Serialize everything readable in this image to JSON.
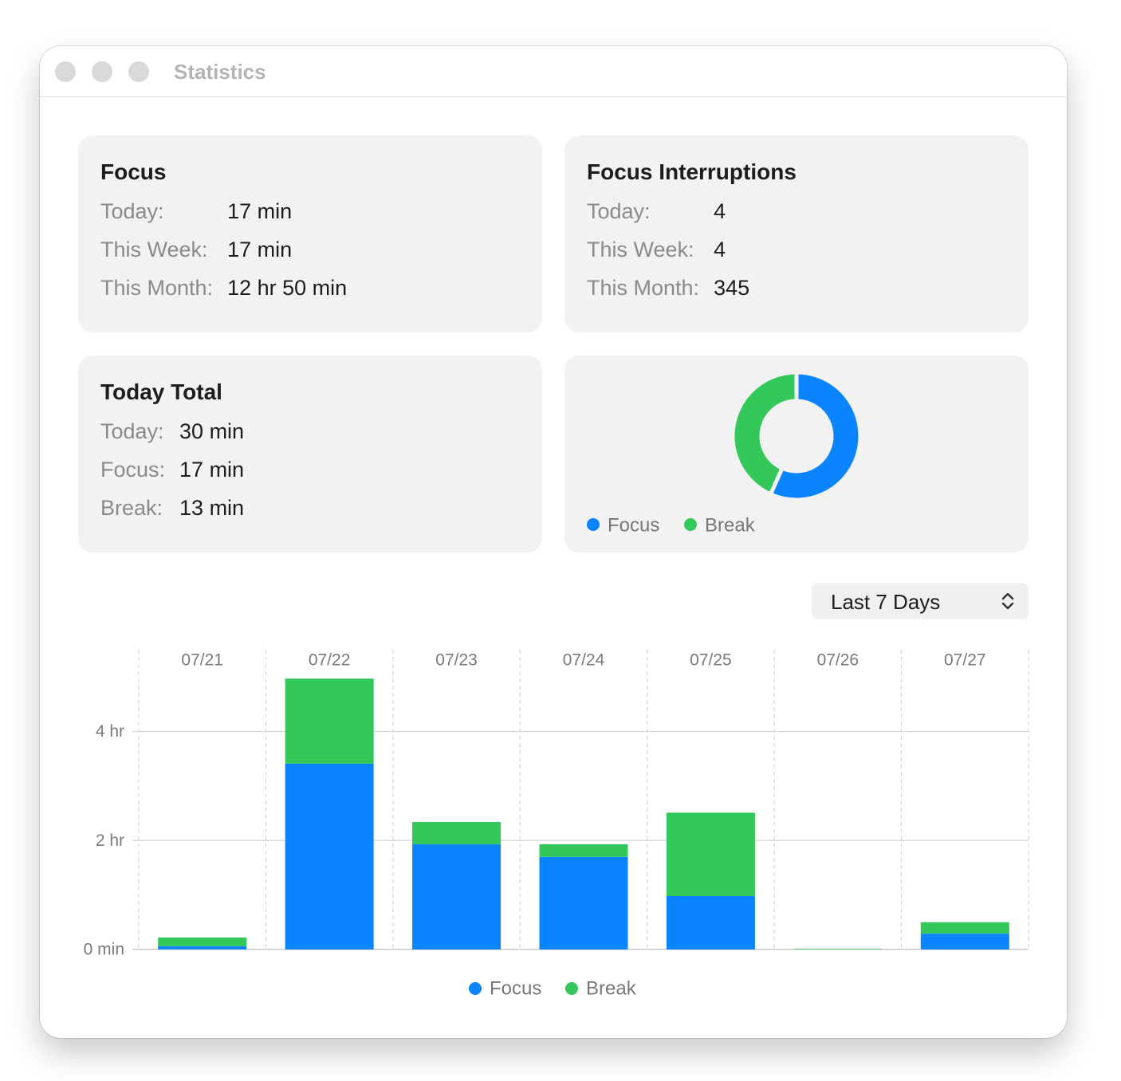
{
  "window": {
    "title": "Statistics"
  },
  "cards": [
    {
      "title": "Focus",
      "rows": [
        [
          "Today:",
          "17 min"
        ],
        [
          "This Week:",
          "17 min"
        ],
        [
          "This Month:",
          "12 hr 50 min"
        ]
      ]
    },
    {
      "title": "Focus Interruptions",
      "rows": [
        [
          "Today:",
          "4"
        ],
        [
          "This Week:",
          "4"
        ],
        [
          "This Month:",
          "345"
        ]
      ]
    },
    {
      "title": "Today Total",
      "rows": [
        [
          "Today:",
          "30 min"
        ],
        [
          "Focus:",
          "17 min"
        ],
        [
          "Break:",
          "13 min"
        ]
      ]
    }
  ],
  "range_selector": "Last 7 Days",
  "chart_data": [
    {
      "type": "donut",
      "categories": [
        "Focus",
        "Break"
      ],
      "values": [
        17,
        13
      ],
      "colors": [
        "#0a84ff",
        "#34c759"
      ]
    },
    {
      "type": "bar",
      "stacked": true,
      "categories": [
        "07/21",
        "07/22",
        "07/23",
        "07/24",
        "07/25",
        "07/26",
        "07/27"
      ],
      "series": [
        {
          "name": "Focus",
          "color": "#0a84ff",
          "values": [
            0.06,
            3.41,
            1.93,
            1.7,
            0.98,
            0,
            0.29
          ]
        },
        {
          "name": "Break",
          "color": "#34c759",
          "values": [
            0.16,
            1.56,
            0.41,
            0.23,
            1.53,
            0.01,
            0.21
          ]
        }
      ],
      "ylim": [
        0,
        5.5
      ],
      "yticks": [
        {
          "value": 0,
          "label": "0 min"
        },
        {
          "value": 2,
          "label": "2 hr"
        },
        {
          "value": 4,
          "label": "4 hr"
        }
      ],
      "grid": true
    }
  ]
}
